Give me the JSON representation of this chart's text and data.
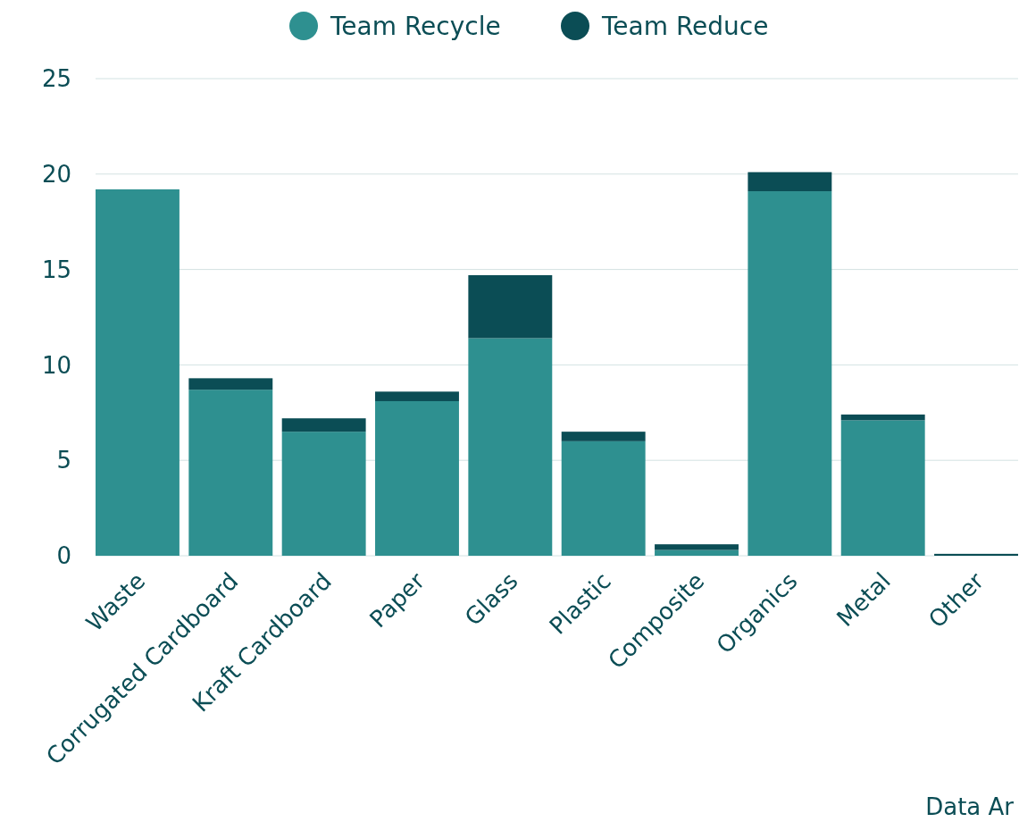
{
  "chart_data": {
    "type": "bar",
    "stacked": true,
    "categories": [
      "Waste",
      "Corrugated Cardboard",
      "Kraft Cardboard",
      "Paper",
      "Glass",
      "Plastic",
      "Composite",
      "Organics",
      "Metal",
      "Other"
    ],
    "series": [
      {
        "name": "Team Recycle",
        "color": "#2e9090",
        "values": [
          19.2,
          8.7,
          6.5,
          8.1,
          11.4,
          6.0,
          0.3,
          19.1,
          7.1,
          0
        ]
      },
      {
        "name": "Team Reduce",
        "color": "#0b4d55",
        "values": [
          0,
          0.6,
          0.7,
          0.5,
          3.3,
          0.5,
          0.3,
          1.0,
          0.3,
          0.1
        ]
      }
    ],
    "ylim": [
      0,
      25
    ],
    "yticks": [
      0,
      5,
      10,
      15,
      20,
      25
    ],
    "grid": "y",
    "legend": "top",
    "annotations": [
      "Data Ar"
    ]
  }
}
